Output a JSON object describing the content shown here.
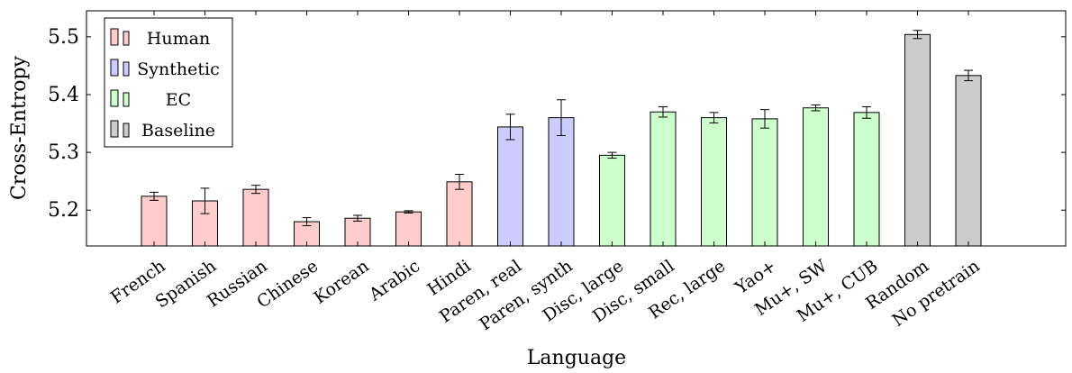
{
  "chart_data": {
    "type": "bar",
    "xlabel": "Language",
    "ylabel": "Cross-Entropy",
    "ylim": [
      5.138,
      5.545
    ],
    "yticks": [
      5.2,
      5.3,
      5.4,
      5.5
    ],
    "ytick_labels": [
      "5.2",
      "5.3",
      "5.4",
      "5.5"
    ],
    "grid": false,
    "legend_position": "top-left",
    "groups": [
      {
        "name": "Human",
        "fill": "#ffcccc"
      },
      {
        "name": "Synthetic",
        "fill": "#ccccff"
      },
      {
        "name": "EC",
        "fill": "#ccffcc"
      },
      {
        "name": "Baseline",
        "fill": "#cccccc"
      }
    ],
    "categories": [
      "French",
      "Spanish",
      "Russian",
      "Chinese",
      "Korean",
      "Arabic",
      "Hindi",
      "Paren, real",
      "Paren, synth",
      "Disc, large",
      "Disc, small",
      "Rec, large",
      "Yao+",
      "Mu+, SW",
      "Mu+, CUB",
      "Random",
      "No pretrain"
    ],
    "values": [
      5.224,
      5.216,
      5.236,
      5.18,
      5.186,
      5.197,
      5.249,
      5.344,
      5.36,
      5.295,
      5.37,
      5.36,
      5.358,
      5.377,
      5.369,
      5.504,
      5.433
    ],
    "errors": [
      0.007,
      0.022,
      0.007,
      0.007,
      0.005,
      0.002,
      0.013,
      0.022,
      0.031,
      0.005,
      0.009,
      0.009,
      0.016,
      0.005,
      0.01,
      0.007,
      0.009
    ],
    "group_index": [
      0,
      0,
      0,
      0,
      0,
      0,
      0,
      1,
      1,
      2,
      2,
      2,
      2,
      2,
      2,
      3,
      3
    ]
  }
}
